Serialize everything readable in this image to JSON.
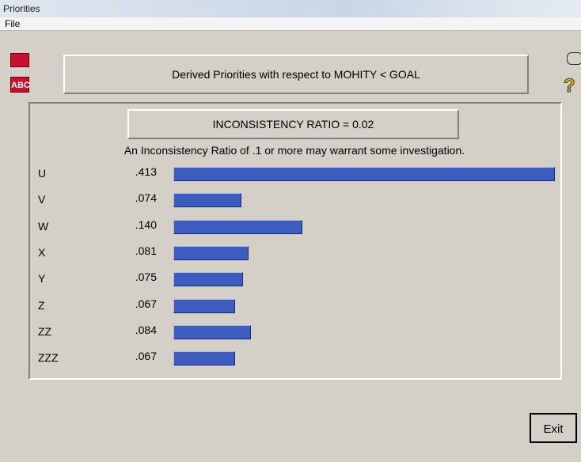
{
  "window": {
    "title": "Priorities",
    "menu": [
      "File"
    ],
    "abc_icon": "ABC",
    "help_icon": "?",
    "exit_button": "Exit"
  },
  "chart_data": {
    "type": "bar",
    "orientation": "horizontal",
    "title": "Derived Priorities with respect to MOHITY < GOAL",
    "subtitle": "INCONSISTENCY RATIO = 0.02",
    "annotation": "An Inconsistency Ratio of .1 or more may warrant some investigation.",
    "categories": [
      "U",
      "V",
      "W",
      "X",
      "Y",
      "Z",
      "ZZ",
      "ZZZ"
    ],
    "values": [
      0.413,
      0.074,
      0.14,
      0.081,
      0.075,
      0.067,
      0.084,
      0.067
    ],
    "value_labels": [
      ".413",
      ".074",
      ".140",
      ".081",
      ".075",
      ".067",
      ".084",
      ".067"
    ],
    "color": "#3c5cc0"
  }
}
